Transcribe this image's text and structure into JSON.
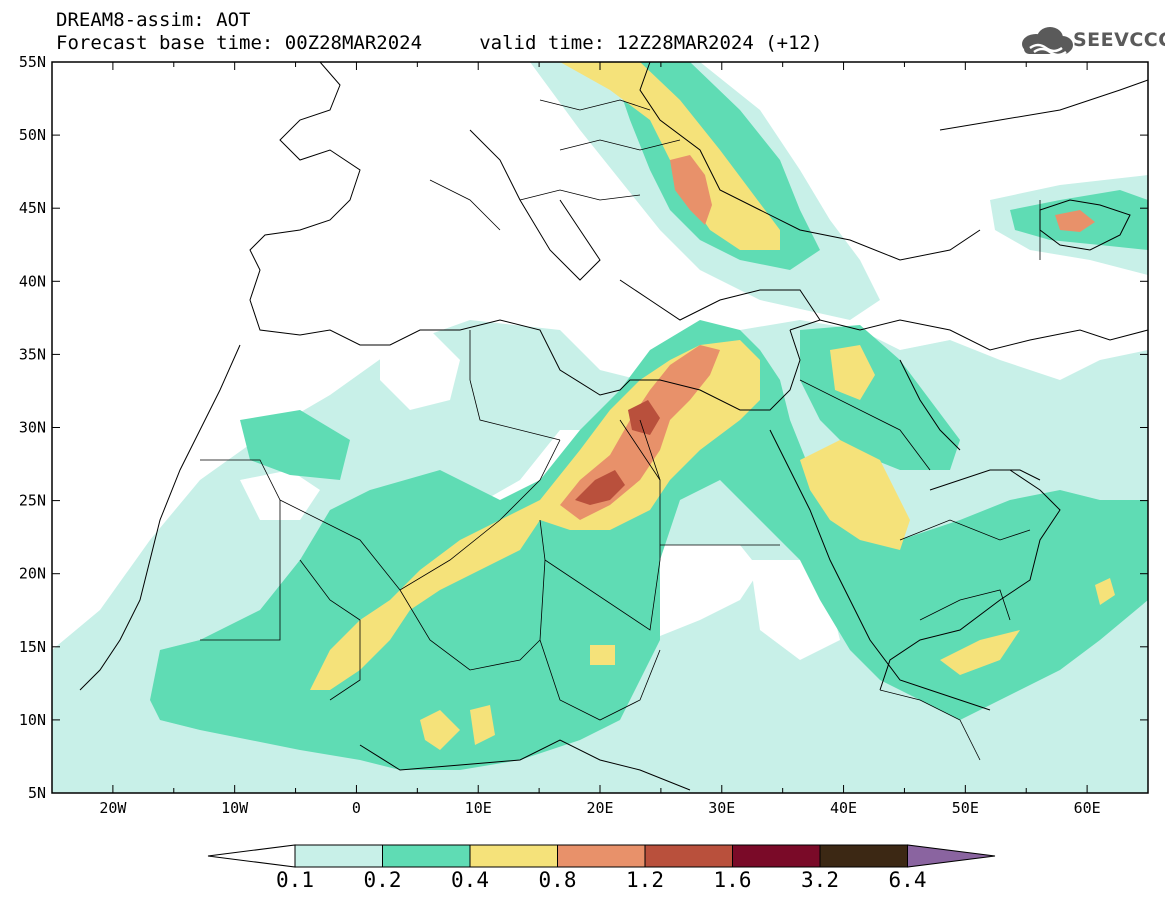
{
  "header": {
    "title_line1": "DREAM8-assim: AOT",
    "title_line2": "Forecast base time: 00Z28MAR2024     valid time: 12Z28MAR2024 (+12)"
  },
  "logo": {
    "text": "SEEVCCC",
    "icon": "cloud-logo-icon"
  },
  "map": {
    "lon_range": [
      -25,
      65
    ],
    "lat_range": [
      5,
      55
    ],
    "lat_ticks": [
      "55N",
      "50N",
      "45N",
      "40N",
      "35N",
      "30N",
      "25N",
      "20N",
      "15N",
      "10N",
      "5N"
    ],
    "lon_ticks": [
      "20W",
      "10W",
      "0",
      "10E",
      "20E",
      "30E",
      "40E",
      "50E",
      "60E"
    ]
  },
  "colorbar": {
    "labels": [
      "0.1",
      "0.2",
      "0.4",
      "0.8",
      "1.2",
      "1.6",
      "3.2",
      "6.4"
    ],
    "colors": [
      "#ffffff",
      "#c8f0e8",
      "#5fdcb4",
      "#f5e27a",
      "#e8916a",
      "#b9503c",
      "#7a0a28",
      "#3c2814",
      "#8a64a0"
    ]
  }
}
